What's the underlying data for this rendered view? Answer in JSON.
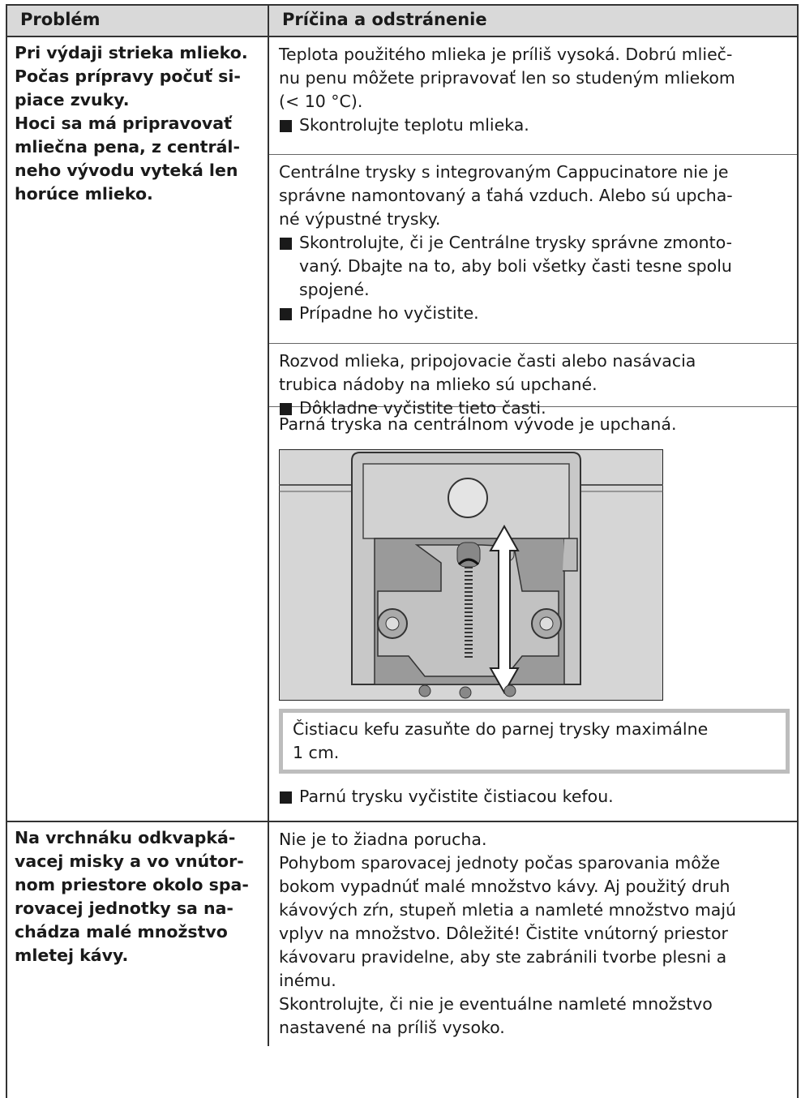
{
  "table": {
    "header": [
      "Problém",
      "Príčina a odstránenie"
    ],
    "rows": [
      {
        "problem": [
          "Pri výdaji strieka mlieko.",
          "Počas prípravy počuť si-",
          "piace zvuky.",
          "Hoci sa má pripravovať",
          "mliečna pena, z centrál-",
          "neho vývodu vyteká len",
          "horúce mlieko."
        ],
        "causes": [
          {
            "text": [
              "Teplota použitého mlieka je príliš vysoká. Dobrú mlieč-",
              "nu penu môžete pripravovať len so studeným mliekom",
              "(< 10 °C)."
            ],
            "bullets": [
              [
                "Skontrolujte teplotu mlieka."
              ]
            ]
          },
          {
            "text": [
              "Centrálne trysky s integrovaným Cappucinatore nie je",
              "správne namontovaný a ťahá vzduch. Alebo sú upcha-",
              "né výpustné trysky."
            ],
            "bullets": [
              [
                "Skontrolujte, či je Centrálne trysky správne zmonto-",
                "vaný. Dbajte na to, aby boli všetky časti tesne spolu",
                "spojené."
              ],
              [
                "Prípadne ho vyčistite."
              ]
            ]
          },
          {
            "text": [
              "Rozvod mlieka, pripojovacie časti alebo nasávacia",
              "trubica nádoby na mlieko sú upchané."
            ],
            "bullets": [
              [
                "Dôkladne vyčistite tieto časti."
              ]
            ]
          },
          {
            "text": [
              "Parná tryska na centrálnom vývode je upchaná."
            ],
            "note": [
              "Čistiacu kefu zasuňte do parnej trysky maximálne",
              "1 cm."
            ],
            "bullets": [
              [
                "Parnú trysku vyčistite čistiacou kefou."
              ]
            ]
          }
        ]
      },
      {
        "problem": [
          "Na vrchnáku odkvapká-",
          "vacej misky a vo vnútor-",
          "nom priestore okolo spa-",
          "rovacej jednotky sa na-",
          "chádza malé množstvo",
          "mletej kávy."
        ],
        "causes": [
          {
            "text": [
              "Nie je to žiadna porucha.",
              "Pohybom sparovacej jednoty počas sparovania môže",
              "bokom vypadnúť malé množstvo kávy. Aj použitý druh",
              "kávových zŕn, stupeň mletia a namleté množstvo majú",
              "vplyv na množstvo. Dôležité! Čistite vnútorný priestor",
              "kávovaru pravidelne, aby ste zabránili tvorbe plesni a",
              "inému.",
              "Skontrolujte, či nie je eventuálne namleté množstvo",
              "nastavené na príliš vysoko."
            ]
          }
        ]
      }
    ]
  }
}
